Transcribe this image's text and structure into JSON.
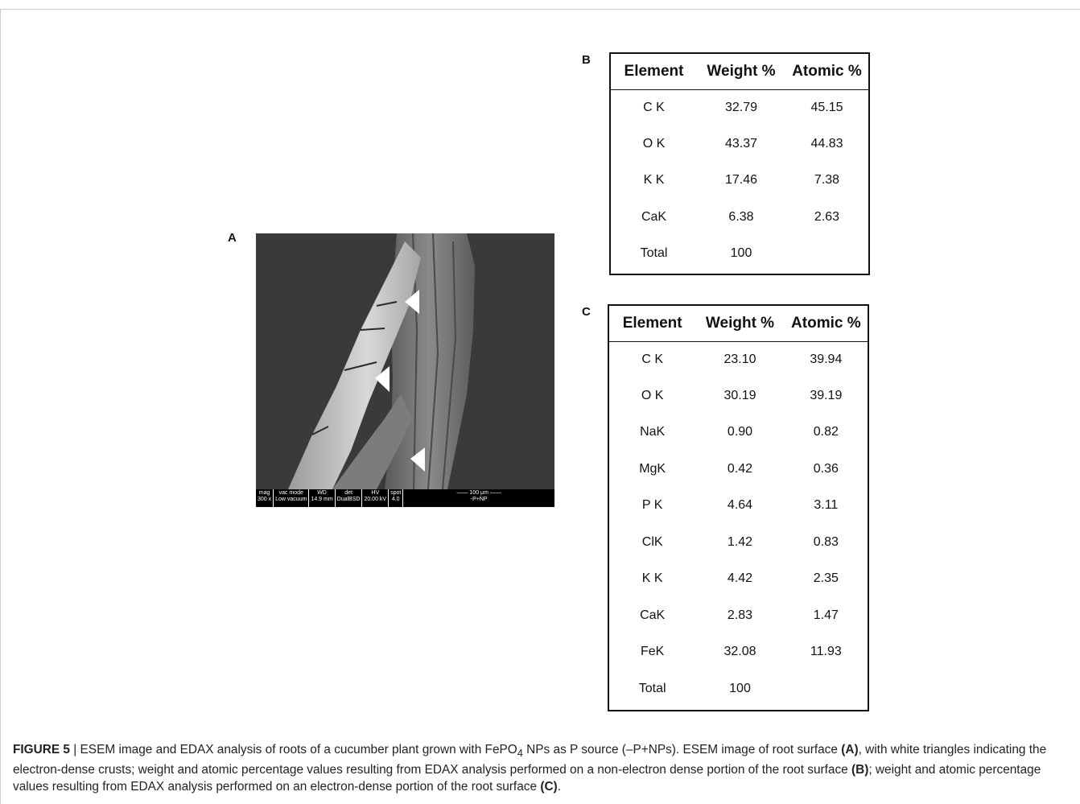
{
  "figure": {
    "panel_a_label": "A",
    "panel_b_label": "B",
    "panel_c_label": "C"
  },
  "sem": {
    "meta": [
      {
        "top": "mag",
        "bottom": "300 x"
      },
      {
        "top": "vac mode",
        "bottom": "Low vacuum"
      },
      {
        "top": "WD",
        "bottom": "14.9 mm"
      },
      {
        "top": "det",
        "bottom": "DualBSD"
      },
      {
        "top": "HV",
        "bottom": "20.00 kV"
      },
      {
        "top": "spot",
        "bottom": "4.0"
      },
      {
        "top": "100 μm",
        "bottom": "-P+NP"
      }
    ]
  },
  "table_b": {
    "headers": [
      "Element",
      "Weight %",
      "Atomic %"
    ],
    "rows": [
      [
        "C K",
        "32.79",
        "45.15"
      ],
      [
        "O K",
        "43.37",
        "44.83"
      ],
      [
        "K K",
        "17.46",
        "7.38"
      ],
      [
        "CaK",
        "6.38",
        "2.63"
      ],
      [
        "Total",
        "100",
        ""
      ]
    ]
  },
  "table_c": {
    "headers": [
      "Element",
      "Weight %",
      "Atomic %"
    ],
    "rows": [
      [
        "C K",
        "23.10",
        "39.94"
      ],
      [
        "O K",
        "30.19",
        "39.19"
      ],
      [
        "NaK",
        "0.90",
        "0.82"
      ],
      [
        "MgK",
        "0.42",
        "0.36"
      ],
      [
        "P K",
        "4.64",
        "3.11"
      ],
      [
        "ClK",
        "1.42",
        "0.83"
      ],
      [
        "K K",
        "4.42",
        "2.35"
      ],
      [
        "CaK",
        "2.83",
        "1.47"
      ],
      [
        "FeK",
        "32.08",
        "11.93"
      ],
      [
        "Total",
        "100",
        ""
      ]
    ]
  },
  "caption": {
    "label": "FIGURE 5",
    "sep": " | ",
    "part1": "ESEM image and EDAX analysis of roots of a cucumber plant grown with FePO",
    "sub": "4",
    "part2": " NPs as P source (–P+NPs). ESEM image of root surface ",
    "ref_a": "(A)",
    "part3": ", with white triangles indicating the electron-dense crusts; weight and atomic percentage values resulting from EDAX analysis performed on a non-electron dense portion of the root surface ",
    "ref_b": "(B)",
    "part4": "; weight and atomic percentage values resulting from EDAX analysis performed on an electron-dense portion of the root surface ",
    "ref_c": "(C)",
    "part5": "."
  }
}
